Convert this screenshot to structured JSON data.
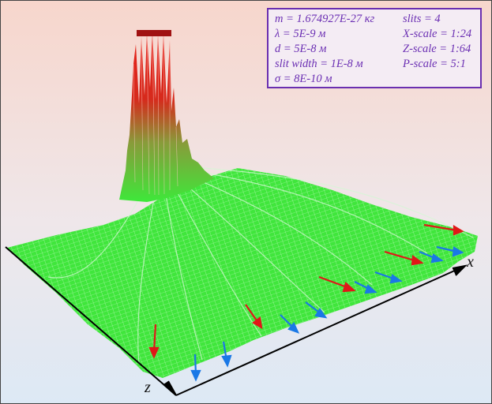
{
  "parameters": {
    "mass": "m = 1.674927E-27 кг",
    "lambda": "λ = 5E-9 м",
    "d": "d = 5E-8 м",
    "slit_width": "slit width = 1E-8 м",
    "sigma": "σ = 8E-10 м",
    "slits": "slits = 4",
    "x_scale": "X-scale = 1:24",
    "z_scale": "Z-scale = 1:64",
    "p_scale": "P-scale = 5:1"
  },
  "axes": {
    "x_label": "x",
    "z_label": "z"
  },
  "colors": {
    "surface_low": "#3ee83a",
    "surface_high": "#e8201a",
    "mesh": "#d8f5d8",
    "red_arrow": "#e01818",
    "blue_arrow": "#1a78e6",
    "box_border": "#6a2fb0",
    "box_text": "#6b2fb3"
  }
}
